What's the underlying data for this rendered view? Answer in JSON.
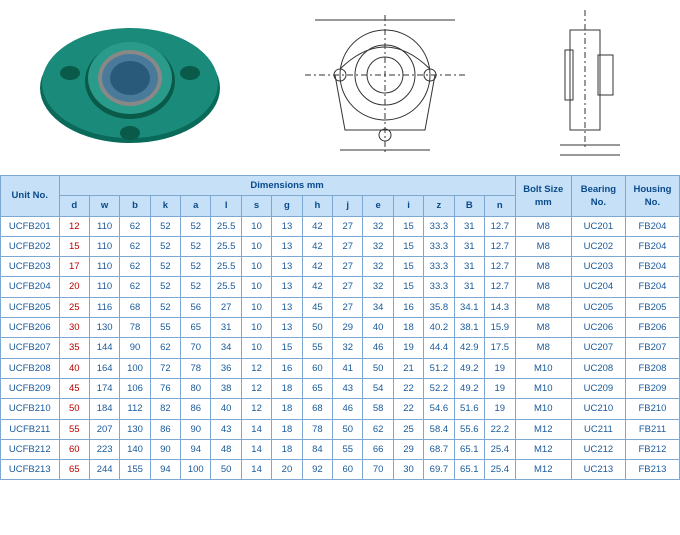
{
  "header": {
    "unit": "Unit No.",
    "dimensions": "Dimensions  mm",
    "bolt": "Bolt Size mm",
    "bearing": "Bearing No.",
    "housing": "Housing No.",
    "cols": [
      "d",
      "w",
      "b",
      "k",
      "a",
      "l",
      "s",
      "g",
      "h",
      "j",
      "e",
      "i",
      "z",
      "B",
      "n"
    ]
  },
  "rows": [
    {
      "unit": "UCFB201",
      "d": "12",
      "w": "110",
      "b": "62",
      "k": "52",
      "a": "52",
      "l": "25.5",
      "s": "10",
      "g": "13",
      "h": "42",
      "j": "27",
      "e": "32",
      "i": "15",
      "z": "33.3",
      "B": "31",
      "n": "12.7",
      "bolt": "M8",
      "bearing": "UC201",
      "housing": "FB204"
    },
    {
      "unit": "UCFB202",
      "d": "15",
      "w": "110",
      "b": "62",
      "k": "52",
      "a": "52",
      "l": "25.5",
      "s": "10",
      "g": "13",
      "h": "42",
      "j": "27",
      "e": "32",
      "i": "15",
      "z": "33.3",
      "B": "31",
      "n": "12.7",
      "bolt": "M8",
      "bearing": "UC202",
      "housing": "FB204"
    },
    {
      "unit": "UCFB203",
      "d": "17",
      "w": "110",
      "b": "62",
      "k": "52",
      "a": "52",
      "l": "25.5",
      "s": "10",
      "g": "13",
      "h": "42",
      "j": "27",
      "e": "32",
      "i": "15",
      "z": "33.3",
      "B": "31",
      "n": "12.7",
      "bolt": "M8",
      "bearing": "UC203",
      "housing": "FB204"
    },
    {
      "unit": "UCFB204",
      "d": "20",
      "w": "110",
      "b": "62",
      "k": "52",
      "a": "52",
      "l": "25.5",
      "s": "10",
      "g": "13",
      "h": "42",
      "j": "27",
      "e": "32",
      "i": "15",
      "z": "33.3",
      "B": "31",
      "n": "12.7",
      "bolt": "M8",
      "bearing": "UC204",
      "housing": "FB204"
    },
    {
      "unit": "UCFB205",
      "d": "25",
      "w": "116",
      "b": "68",
      "k": "52",
      "a": "56",
      "l": "27",
      "s": "10",
      "g": "13",
      "h": "45",
      "j": "27",
      "e": "34",
      "i": "16",
      "z": "35.8",
      "B": "34.1",
      "n": "14.3",
      "bolt": "M8",
      "bearing": "UC205",
      "housing": "FB205"
    },
    {
      "unit": "UCFB206",
      "d": "30",
      "w": "130",
      "b": "78",
      "k": "55",
      "a": "65",
      "l": "31",
      "s": "10",
      "g": "13",
      "h": "50",
      "j": "29",
      "e": "40",
      "i": "18",
      "z": "40.2",
      "B": "38.1",
      "n": "15.9",
      "bolt": "M8",
      "bearing": "UC206",
      "housing": "FB206"
    },
    {
      "unit": "UCFB207",
      "d": "35",
      "w": "144",
      "b": "90",
      "k": "62",
      "a": "70",
      "l": "34",
      "s": "10",
      "g": "15",
      "h": "55",
      "j": "32",
      "e": "46",
      "i": "19",
      "z": "44.4",
      "B": "42.9",
      "n": "17.5",
      "bolt": "M8",
      "bearing": "UC207",
      "housing": "FB207"
    },
    {
      "unit": "UCFB208",
      "d": "40",
      "w": "164",
      "b": "100",
      "k": "72",
      "a": "78",
      "l": "36",
      "s": "12",
      "g": "16",
      "h": "60",
      "j": "41",
      "e": "50",
      "i": "21",
      "z": "51.2",
      "B": "49.2",
      "n": "19",
      "bolt": "M10",
      "bearing": "UC208",
      "housing": "FB208"
    },
    {
      "unit": "UCFB209",
      "d": "45",
      "w": "174",
      "b": "106",
      "k": "76",
      "a": "80",
      "l": "38",
      "s": "12",
      "g": "18",
      "h": "65",
      "j": "43",
      "e": "54",
      "i": "22",
      "z": "52.2",
      "B": "49.2",
      "n": "19",
      "bolt": "M10",
      "bearing": "UC209",
      "housing": "FB209"
    },
    {
      "unit": "UCFB210",
      "d": "50",
      "w": "184",
      "b": "112",
      "k": "82",
      "a": "86",
      "l": "40",
      "s": "12",
      "g": "18",
      "h": "68",
      "j": "46",
      "e": "58",
      "i": "22",
      "z": "54.6",
      "B": "51.6",
      "n": "19",
      "bolt": "M10",
      "bearing": "UC210",
      "housing": "FB210"
    },
    {
      "unit": "UCFB211",
      "d": "55",
      "w": "207",
      "b": "130",
      "k": "86",
      "a": "90",
      "l": "43",
      "s": "14",
      "g": "18",
      "h": "78",
      "j": "50",
      "e": "62",
      "i": "25",
      "z": "58.4",
      "B": "55.6",
      "n": "22.2",
      "bolt": "M12",
      "bearing": "UC211",
      "housing": "FB211"
    },
    {
      "unit": "UCFB212",
      "d": "60",
      "w": "223",
      "b": "140",
      "k": "90",
      "a": "94",
      "l": "48",
      "s": "14",
      "g": "18",
      "h": "84",
      "j": "55",
      "e": "66",
      "i": "29",
      "z": "68.7",
      "B": "65.1",
      "n": "25.4",
      "bolt": "M12",
      "bearing": "UC212",
      "housing": "FB212"
    },
    {
      "unit": "UCFB213",
      "d": "65",
      "w": "244",
      "b": "155",
      "k": "94",
      "a": "100",
      "l": "50",
      "s": "14",
      "g": "20",
      "h": "92",
      "j": "60",
      "e": "70",
      "i": "30",
      "z": "69.7",
      "B": "65.1",
      "n": "25.4",
      "bolt": "M12",
      "bearing": "UC213",
      "housing": "FB213"
    }
  ],
  "colors": {
    "header_bg": "#c5e0f7",
    "header_text": "#0a4a8a",
    "border": "#7ba7d1",
    "cell_text": "#1a5a9a",
    "d_text": "#b00000",
    "product_body": "#1a8a7a",
    "product_bore": "#4a7a9a"
  }
}
